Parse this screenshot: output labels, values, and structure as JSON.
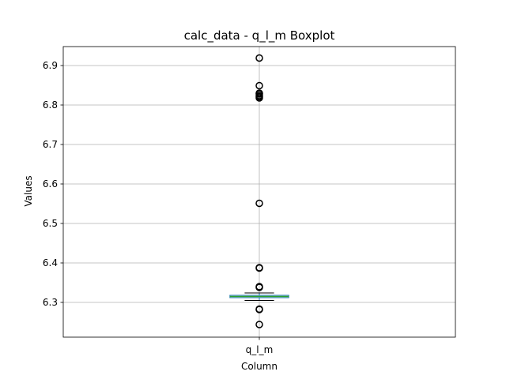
{
  "chart_data": {
    "type": "boxplot",
    "title": "calc_data - q_l_m Boxplot",
    "xlabel": "Column",
    "ylabel": "Values",
    "categories": [
      "q_l_m"
    ],
    "ylim": [
      6.212,
      6.948
    ],
    "yticks": [
      6.3,
      6.4,
      6.5,
      6.6,
      6.7,
      6.8,
      6.9
    ],
    "grid": true,
    "boxes": [
      {
        "name": "q_l_m",
        "whisker_low": 6.305,
        "q1": 6.312,
        "median": 6.315,
        "q3": 6.318,
        "whisker_high": 6.324,
        "outliers": [
          6.244,
          6.282,
          6.283,
          6.338,
          6.34,
          6.387,
          6.388,
          6.551,
          6.818,
          6.821,
          6.824,
          6.828,
          6.83,
          6.849,
          6.919
        ]
      }
    ],
    "colors": {
      "box": "#1f77b4",
      "median": "#2ca02c",
      "grid": "#b0b0b0"
    }
  }
}
